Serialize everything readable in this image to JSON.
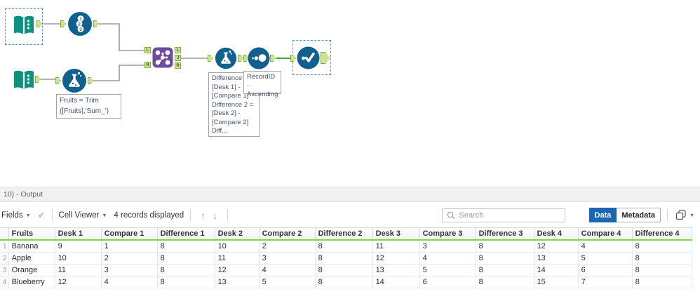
{
  "canvas": {
    "annotations": {
      "formula1": "Fruits = Trim\n([Fruits],'Sum_')",
      "formula2": "Difference\n[Desk 1] -\n[Compare 1]\nDifference 2 =\n[Desk 2] -\n[Compare 2]\nDiff...",
      "sort": "RecordID -\nAscending"
    },
    "join_anchors": {
      "in_l": "L",
      "in_r": "R",
      "out_l": "L",
      "out_j": "J",
      "out_r": "R"
    }
  },
  "results": {
    "title": "10) - Output",
    "toolbar": {
      "fields": "Fields",
      "cell_viewer": "Cell Viewer",
      "records": "4 records displayed",
      "search_placeholder": "Search",
      "data": "Data",
      "metadata": "Metadata"
    },
    "table": {
      "headers": [
        "Fruits",
        "Desk 1",
        "Compare 1",
        "Difference 1",
        "Desk 2",
        "Compare 2",
        "Difference 2",
        "Desk 3",
        "Compare 3",
        "Difference 3",
        "Desk 4",
        "Compare 4",
        "Difference 4"
      ],
      "rows": [
        {
          "num": "1",
          "cells": [
            "Banana",
            "9",
            "1",
            "8",
            "10",
            "2",
            "8",
            "11",
            "3",
            "8",
            "12",
            "4",
            "8"
          ]
        },
        {
          "num": "2",
          "cells": [
            "Apple",
            "10",
            "2",
            "8",
            "11",
            "3",
            "8",
            "12",
            "4",
            "8",
            "13",
            "5",
            "8"
          ]
        },
        {
          "num": "3",
          "cells": [
            "Orange",
            "11",
            "3",
            "8",
            "12",
            "4",
            "8",
            "13",
            "5",
            "8",
            "14",
            "6",
            "8"
          ]
        },
        {
          "num": "4",
          "cells": [
            "Blueberry",
            "12",
            "4",
            "8",
            "13",
            "5",
            "8",
            "14",
            "6",
            "8",
            "15",
            "7",
            "8"
          ]
        }
      ]
    }
  },
  "colors": {
    "tool_blue": "#11618F",
    "input_teal": "#0F9180",
    "join_purple": "#6C4C9F",
    "anchor_fill": "#CBE492",
    "anchor_border": "#7FB041",
    "connection_gray": "#9B9B9B",
    "connection_green": "#3FA43F",
    "selection_blue": "#4F8FD9",
    "data_button_blue": "#1B66B4",
    "header_underline_green": "#77D94A"
  }
}
